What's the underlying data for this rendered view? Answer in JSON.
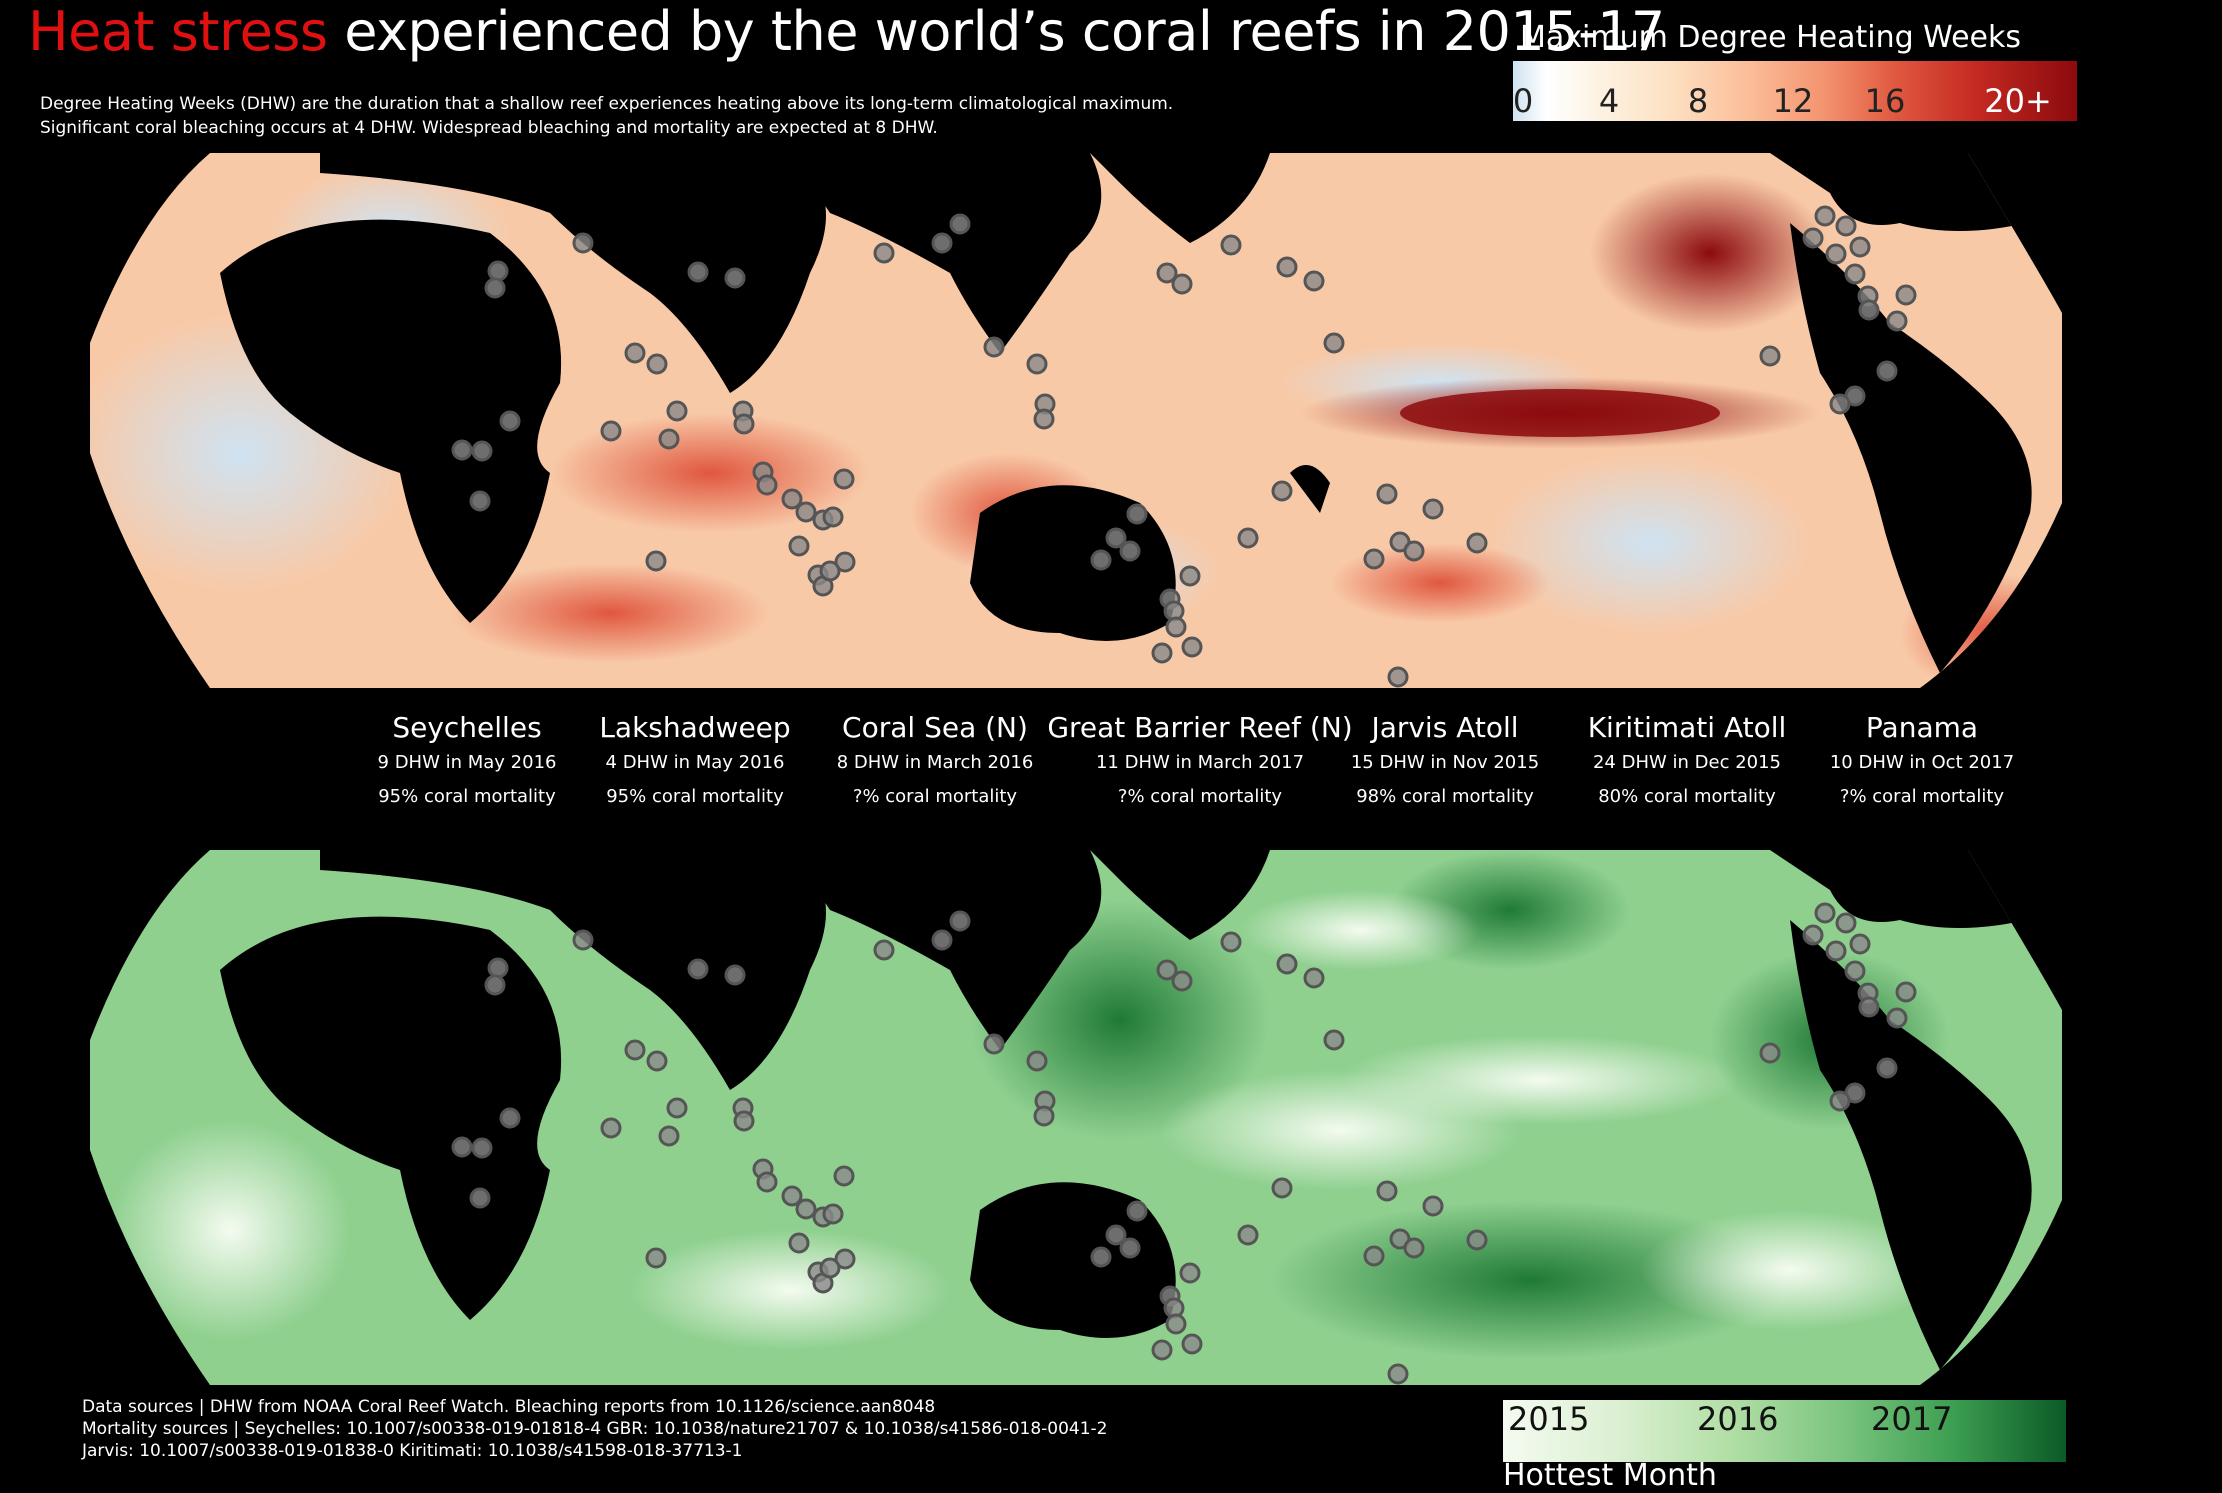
{
  "title": {
    "highlight": "Heat stress",
    "rest": " experienced by the world’s coral reefs in 2015-17"
  },
  "subtitle": [
    "Degree Heating Weeks (DHW) are the duration that a shallow reef experiences heating above its long-term climatological maximum.",
    "Significant coral bleaching occurs at 4 DHW. Widespread bleaching and mortality are expected at 8 DHW."
  ],
  "dhw_legend": {
    "title": "Maximum Degree Heating Weeks",
    "ticks": [
      "0",
      "4",
      "8",
      "12",
      "16",
      "20+"
    ]
  },
  "sites": [
    {
      "name": "Seychelles",
      "dhw": "9 DHW in May 2016",
      "mortality": "95% coral mortality"
    },
    {
      "name": "Lakshadweep",
      "dhw": "4 DHW in May 2016",
      "mortality": "95% coral mortality"
    },
    {
      "name": "Coral Sea (N)",
      "dhw": "8 DHW in March 2016",
      "mortality": "?% coral mortality"
    },
    {
      "name": "Great Barrier Reef (N)",
      "dhw": "11 DHW in March 2017",
      "mortality": "?% coral mortality"
    },
    {
      "name": "Jarvis Atoll",
      "dhw": "15 DHW in Nov 2015",
      "mortality": "98% coral mortality"
    },
    {
      "name": "Kiritimati Atoll",
      "dhw": "24 DHW in Dec 2015",
      "mortality": "80% coral mortality"
    },
    {
      "name": "Panama",
      "dhw": "10 DHW in Oct 2017",
      "mortality": "?% coral mortality"
    }
  ],
  "footer": [
    "Data sources | DHW from NOAA Coral Reef Watch. Bleaching reports from 10.1126/science.aan8048",
    "Mortality sources | Seychelles: 10.1007/s00338-019-01818-4 GBR: 10.1038/nature21707 & 10.1038/s41586-018-0041-2",
    "Jarvis: 10.1007/s00338-019-01838-0  Kiritimati: 10.1038/s41598-018-37713-1"
  ],
  "month_legend": {
    "title": "Hottest Month",
    "ticks": [
      "2015",
      "2016",
      "2017"
    ]
  },
  "colors": {
    "title_highlight": "#e01010",
    "marker_fill": "#8a8a8a",
    "marker_stroke": "#555555"
  }
}
